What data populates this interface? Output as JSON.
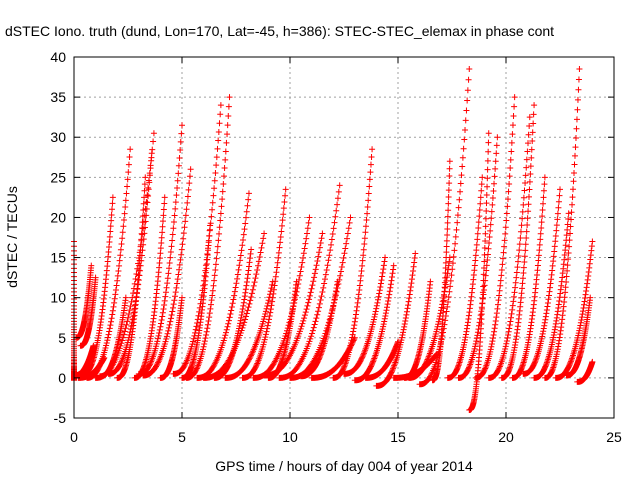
{
  "chart_data": {
    "type": "scatter",
    "title": "dSTEC Iono. truth (dund, Lon=170, Lat=-45, h=386): STEC-STEC_elemax in phase cont",
    "xlabel": "GPS time / hours of day 004 of year 2014",
    "ylabel": "dSTEC  / TECUs",
    "xlim": [
      0,
      25
    ],
    "ylim": [
      -5,
      40
    ],
    "x_ticks": [
      "0",
      "5",
      "10",
      "15",
      "20",
      "25"
    ],
    "y_ticks": [
      "-5",
      "0",
      "5",
      "10",
      "15",
      "20",
      "25",
      "30",
      "35",
      "40"
    ],
    "grid": true,
    "marker": "+",
    "color": "#ff0000",
    "series": [
      {
        "passes": [
          [
            0.0,
            -0.3,
            0.0,
            17.0
          ],
          [
            0.1,
            5.0,
            0.8,
            14.0
          ],
          [
            0.3,
            4.0,
            1.0,
            12.5
          ],
          [
            0.0,
            0.3,
            0.9,
            4.0
          ],
          [
            0.2,
            0.0,
            1.4,
            2.5
          ]
        ]
      },
      {
        "passes": [
          [
            0.4,
            0.5,
            1.8,
            22.5
          ],
          [
            0.6,
            0.0,
            2.6,
            28.5
          ],
          [
            1.0,
            0.0,
            3.7,
            30.5
          ],
          [
            1.6,
            0.5,
            3.6,
            28.0
          ],
          [
            2.0,
            0.0,
            3.3,
            25.0
          ],
          [
            2.8,
            0.0,
            4.2,
            22.5
          ],
          [
            1.2,
            0.2,
            2.4,
            10.0
          ],
          [
            3.0,
            0.5,
            5.0,
            31.5
          ]
        ]
      },
      {
        "passes": [
          [
            3.2,
            0.3,
            5.4,
            26.0
          ],
          [
            4.0,
            0.0,
            5.0,
            10.0
          ],
          [
            5.0,
            0.0,
            6.3,
            19.0
          ],
          [
            4.6,
            0.5,
            6.8,
            34.0
          ],
          [
            5.2,
            0.0,
            7.2,
            35.0
          ],
          [
            5.7,
            0.0,
            8.1,
            23.0
          ],
          [
            6.0,
            0.0,
            8.8,
            18.0
          ],
          [
            6.5,
            0.0,
            8.2,
            16.0
          ],
          [
            7.0,
            0.0,
            9.2,
            12.0
          ]
        ]
      },
      {
        "passes": [
          [
            7.8,
            0.0,
            9.8,
            23.5
          ],
          [
            8.3,
            0.0,
            10.9,
            20.0
          ],
          [
            8.8,
            0.3,
            11.5,
            18.0
          ],
          [
            9.0,
            0.0,
            10.3,
            12.0
          ],
          [
            9.5,
            0.0,
            12.3,
            24.0
          ],
          [
            10.0,
            0.0,
            12.8,
            20.0
          ],
          [
            10.5,
            0.2,
            12.2,
            12.0
          ],
          [
            11.0,
            0.0,
            13.0,
            5.0
          ]
        ]
      },
      {
        "passes": [
          [
            12.0,
            0.0,
            13.8,
            28.5
          ],
          [
            12.5,
            0.5,
            14.4,
            15.0
          ],
          [
            13.0,
            -0.3,
            14.8,
            14.0
          ],
          [
            13.5,
            0.0,
            15.0,
            4.5
          ],
          [
            14.0,
            -1.0,
            15.8,
            15.5
          ],
          [
            15.3,
            0.0,
            16.5,
            12.0
          ],
          [
            14.8,
            0.0,
            16.8,
            3.0
          ]
        ]
      },
      {
        "passes": [
          [
            15.5,
            0.0,
            17.4,
            15.0
          ],
          [
            16.0,
            -0.8,
            18.3,
            38.5
          ],
          [
            16.6,
            -0.3,
            17.4,
            27.0
          ],
          [
            17.3,
            0.0,
            18.9,
            25.0
          ],
          [
            18.3,
            -4.0,
            19.2,
            30.5
          ],
          [
            17.8,
            0.0,
            19.6,
            30.0
          ],
          [
            18.6,
            0.0,
            20.4,
            35.0
          ]
        ]
      },
      {
        "passes": [
          [
            19.2,
            0.0,
            21.1,
            32.5
          ],
          [
            19.8,
            0.0,
            21.3,
            34.0
          ],
          [
            20.3,
            0.0,
            21.8,
            25.0
          ],
          [
            20.8,
            0.5,
            22.5,
            23.5
          ],
          [
            21.3,
            0.0,
            22.9,
            20.5
          ],
          [
            21.8,
            0.0,
            23.4,
            38.5
          ],
          [
            22.3,
            0.0,
            24.0,
            17.0
          ],
          [
            22.8,
            0.3,
            23.9,
            10.0
          ],
          [
            23.3,
            -0.5,
            24.0,
            2.0
          ]
        ]
      }
    ]
  }
}
